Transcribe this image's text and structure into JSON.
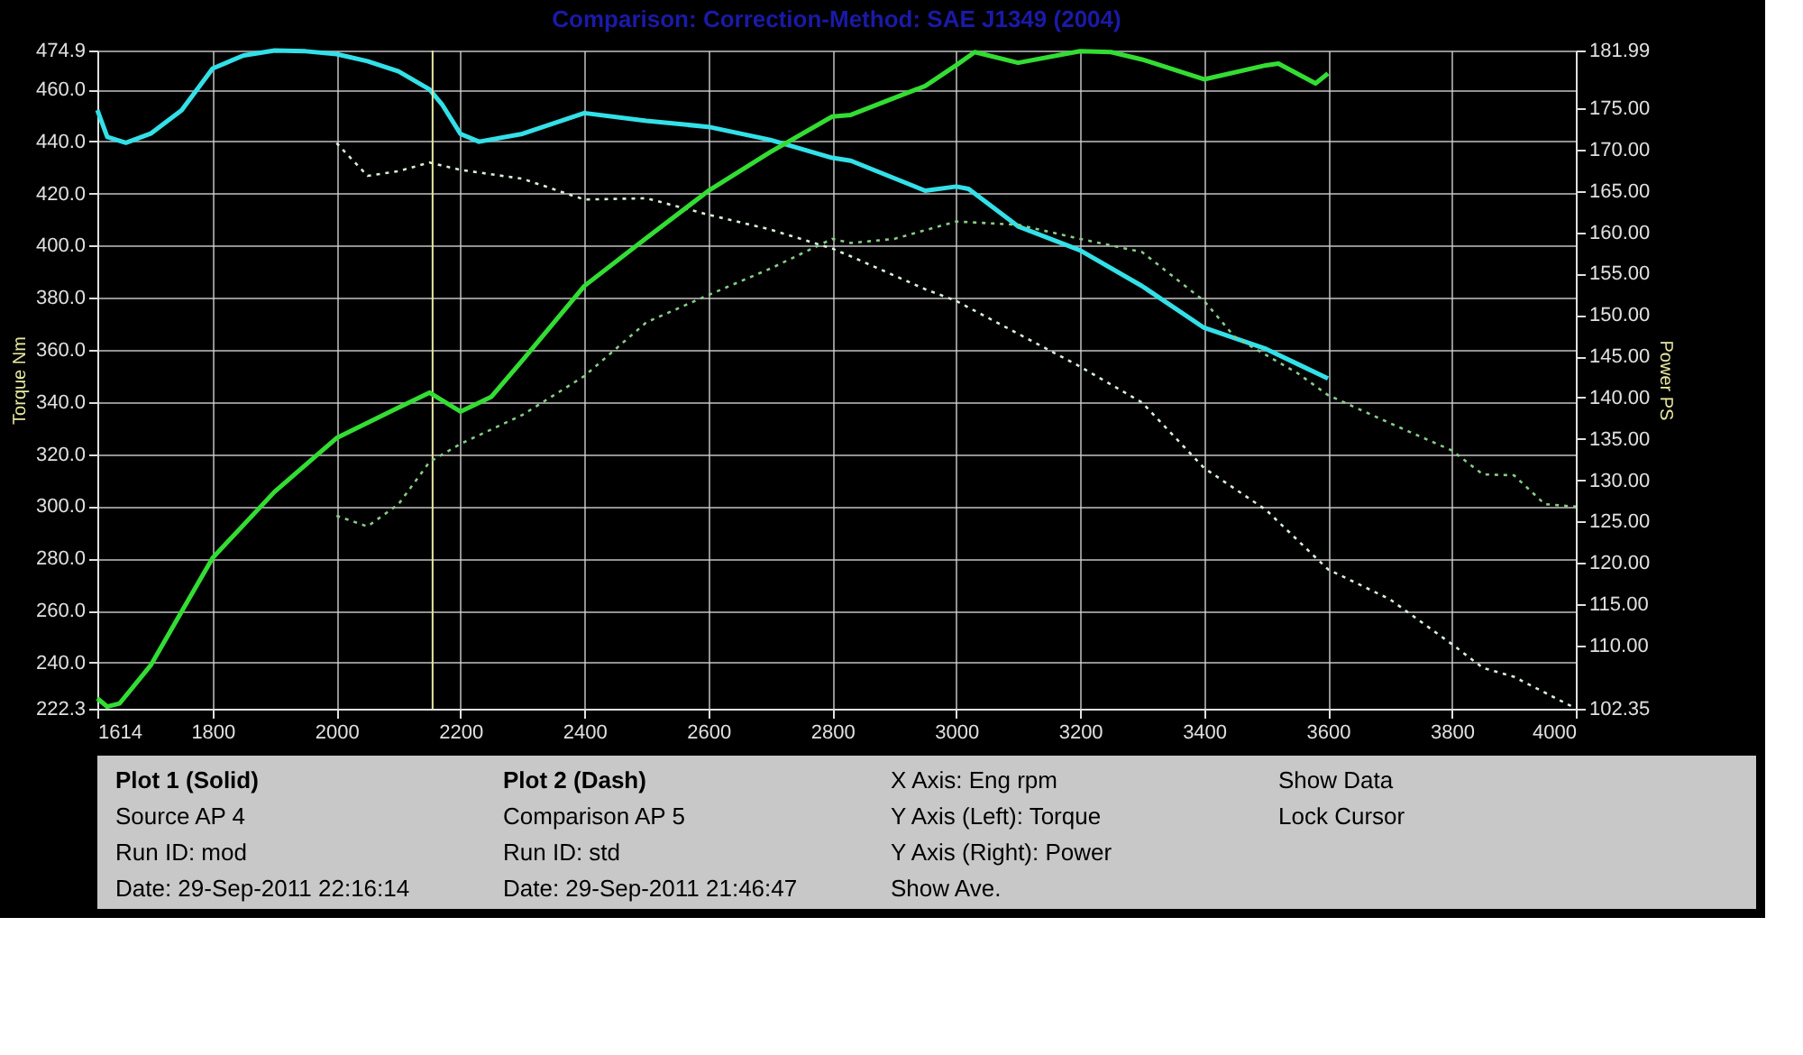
{
  "chart_data": {
    "type": "line",
    "title": "Comparison:     Correction-Method: SAE J1349 (2004)",
    "ylabel": "Torque Nm",
    "y2label": "Power PS",
    "xlim": [
      1614,
      4000
    ],
    "xticks": [
      1614,
      1800,
      2000,
      2200,
      2400,
      2600,
      2800,
      3000,
      3200,
      3400,
      3600,
      3800,
      4000
    ],
    "ylim": [
      222.3,
      474.9
    ],
    "yticks": [
      222.3,
      {
        "value": 240,
        "label": "240.0"
      },
      {
        "value": 260,
        "label": "260.0"
      },
      {
        "value": 280,
        "label": "280.0"
      },
      {
        "value": 300,
        "label": "300.0"
      },
      {
        "value": 320,
        "label": "320.0"
      },
      {
        "value": 340,
        "label": "340.0"
      },
      {
        "value": 360,
        "label": "360.0"
      },
      {
        "value": 380,
        "label": "380.0"
      },
      {
        "value": 400,
        "label": "400.0"
      },
      {
        "value": 420,
        "label": "420.0"
      },
      {
        "value": 440,
        "label": "440.0"
      },
      {
        "value": 460,
        "label": "460.0"
      },
      474.9
    ],
    "y2lim": [
      102.35,
      181.99
    ],
    "y2ticks": [
      102.35,
      {
        "value": 110,
        "label": "110.00"
      },
      {
        "value": 115,
        "label": "115.00"
      },
      {
        "value": 120,
        "label": "120.00"
      },
      {
        "value": 125,
        "label": "125.00"
      },
      {
        "value": 130,
        "label": "130.00"
      },
      {
        "value": 135,
        "label": "135.00"
      },
      {
        "value": 140,
        "label": "140.00"
      },
      {
        "value": 145,
        "label": "145.00"
      },
      {
        "value": 150,
        "label": "150.00"
      },
      {
        "value": 155,
        "label": "155.00"
      },
      {
        "value": 160,
        "label": "160.00"
      },
      {
        "value": 165,
        "label": "165.00"
      },
      {
        "value": 170,
        "label": "170.00"
      },
      {
        "value": 175,
        "label": "175.00"
      },
      181.99
    ],
    "grid": true,
    "ref_lines": [
      {
        "axis": "x",
        "value": 2155,
        "label": null,
        "color": "#e8e8a0"
      }
    ],
    "series": [
      {
        "color": "#33e0e8",
        "line_style": "solid",
        "x": [
          1614,
          1630,
          1660,
          1700,
          1750,
          1800,
          1850,
          1900,
          1950,
          2000,
          2050,
          2100,
          2150,
          2170,
          2200,
          2230,
          2300,
          2400,
          2500,
          2600,
          2700,
          2800,
          2830,
          2950,
          3000,
          3020,
          3100,
          3200,
          3300,
          3400,
          3500,
          3550,
          3600
        ],
        "values": [
          452,
          441.7,
          439.5,
          443,
          452,
          468,
          473,
          474.9,
          474.6,
          473.5,
          470.8,
          466.9,
          460,
          454.3,
          442.9,
          439.9,
          442.9,
          450.9,
          447.9,
          445.6,
          440.6,
          433.7,
          432.6,
          421.1,
          422.7,
          421.8,
          407.4,
          398.2,
          384.5,
          368.5,
          360.4,
          354.7,
          349
        ]
      },
      {
        "color": "#33dd33",
        "line_style": "solid",
        "axis": "y2",
        "x": [
          1614,
          1630,
          1650,
          1700,
          1750,
          1800,
          1900,
          2000,
          2100,
          2150,
          2200,
          2250,
          2300,
          2400,
          2500,
          2600,
          2700,
          2800,
          2830,
          2950,
          3000,
          3030,
          3100,
          3200,
          3250,
          3300,
          3400,
          3500,
          3520,
          3580,
          3600
        ],
        "values": [
          103.6,
          102.6,
          103,
          107.6,
          114.1,
          120.6,
          128.6,
          135.1,
          138.8,
          140.6,
          138.3,
          140.1,
          144.5,
          153.5,
          159.3,
          165,
          169.7,
          174,
          174.2,
          177.7,
          180.2,
          181.8,
          180.5,
          181.9,
          181.8,
          180.9,
          178.5,
          180.2,
          180.4,
          178,
          179.2
        ]
      },
      {
        "color": "#d8f0d8",
        "line_style": "dotted",
        "x": [
          2000,
          2050,
          2100,
          2150,
          2200,
          2300,
          2400,
          2500,
          2600,
          2700,
          2800,
          2830,
          2950,
          3000,
          3200,
          3300,
          3400,
          3500,
          3600,
          3700,
          3800,
          3850,
          3900,
          4000
        ],
        "values": [
          439.4,
          426.8,
          428.6,
          431.9,
          429.1,
          425.7,
          417.7,
          418.2,
          411.9,
          406.2,
          398.9,
          395.9,
          383.3,
          378.8,
          353.6,
          339.8,
          314.7,
          298.6,
          275.8,
          264.3,
          247.1,
          238,
          234.6,
          222.4
        ]
      },
      {
        "color": "#88cc88",
        "line_style": "dotted",
        "axis": "y2",
        "x": [
          2000,
          2050,
          2100,
          2150,
          2200,
          2300,
          2400,
          2500,
          2600,
          2700,
          2800,
          2830,
          2900,
          3000,
          3100,
          3200,
          3300,
          3400,
          3450,
          3550,
          3600,
          3700,
          3800,
          3850,
          3900,
          3950,
          4000
        ],
        "values": [
          125.7,
          124.4,
          127.1,
          132.2,
          134.4,
          137.9,
          142.6,
          149.1,
          152.4,
          155.6,
          159.2,
          158.7,
          159.2,
          161.3,
          160.9,
          159.2,
          157.6,
          151.7,
          147.3,
          143,
          140.3,
          136.9,
          133.6,
          130.7,
          130.6,
          127.1,
          126.8
        ]
      }
    ],
    "annotations": [
      "Plot 1 (Solid)",
      "Source AP 4",
      "Run ID: mod",
      "Date: 29-Sep-2011  22:16:14",
      "Plot 2 (Dash)",
      "Comparison AP 5",
      "Run ID: std",
      "Date: 29-Sep-2011  21:46:47",
      "X Axis: Eng rpm",
      "Y Axis (Left): Torque",
      "Y Axis (Right): Power",
      "Show Ave.",
      "Show Data",
      "Lock Cursor"
    ]
  }
}
